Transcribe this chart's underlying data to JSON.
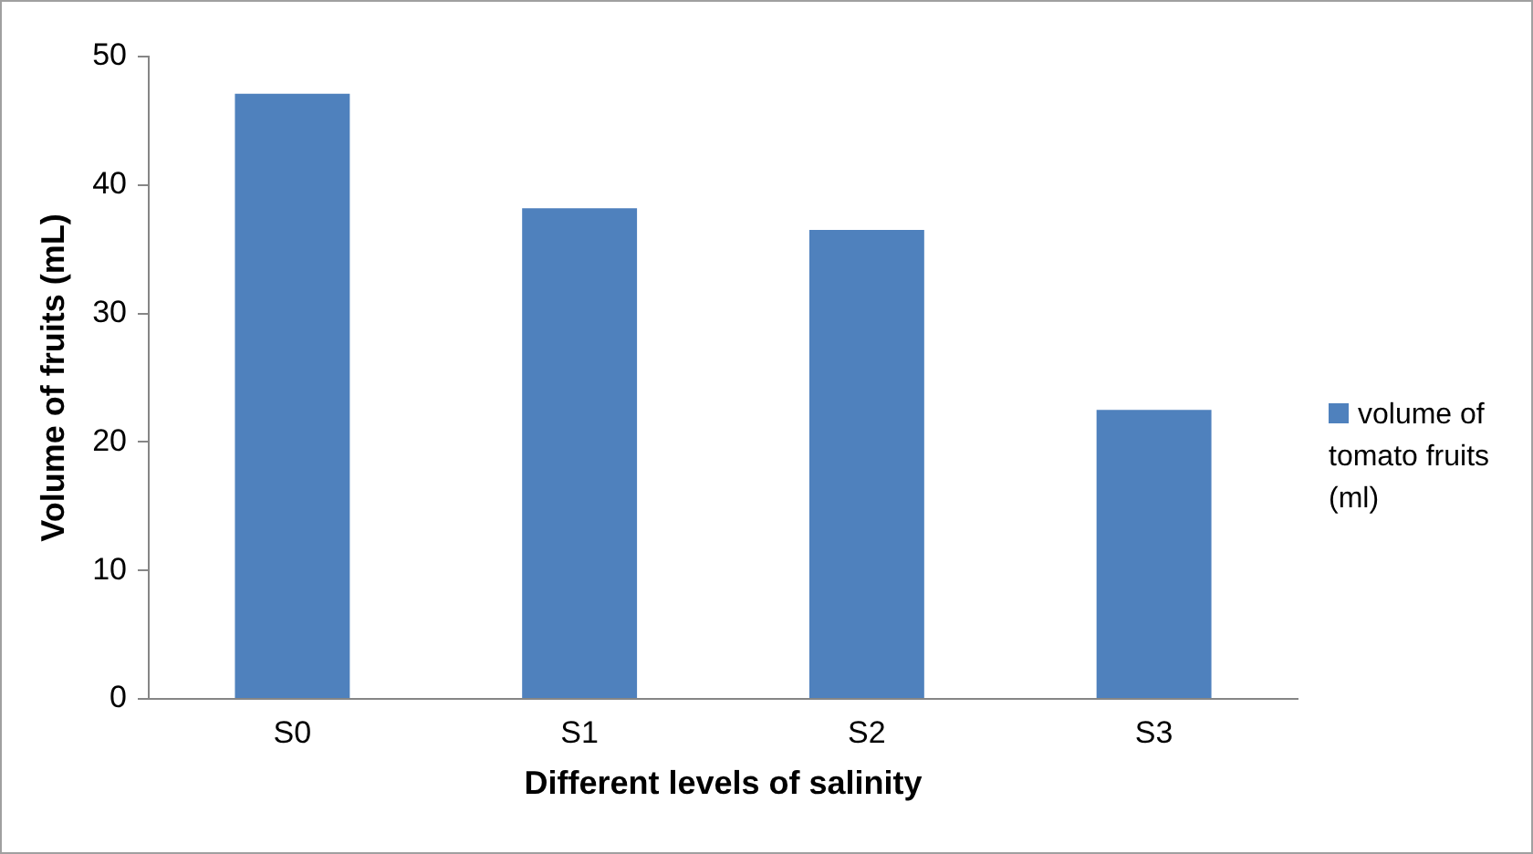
{
  "chart_data": {
    "type": "bar",
    "xlabel": "Different levels of salinity",
    "ylabel": "Volume of fruits (mL)",
    "categories": [
      "S0",
      "S1",
      "S2",
      "S3"
    ],
    "series": [
      {
        "name": "volume of tomato fruits (ml)",
        "color": "#4f81bd",
        "values": [
          47.1,
          38.2,
          36.5,
          22.5
        ]
      }
    ],
    "ylim": [
      0,
      50
    ],
    "yticks": [
      0,
      10,
      20,
      30,
      40,
      50
    ],
    "grid": false,
    "legend": "right"
  }
}
